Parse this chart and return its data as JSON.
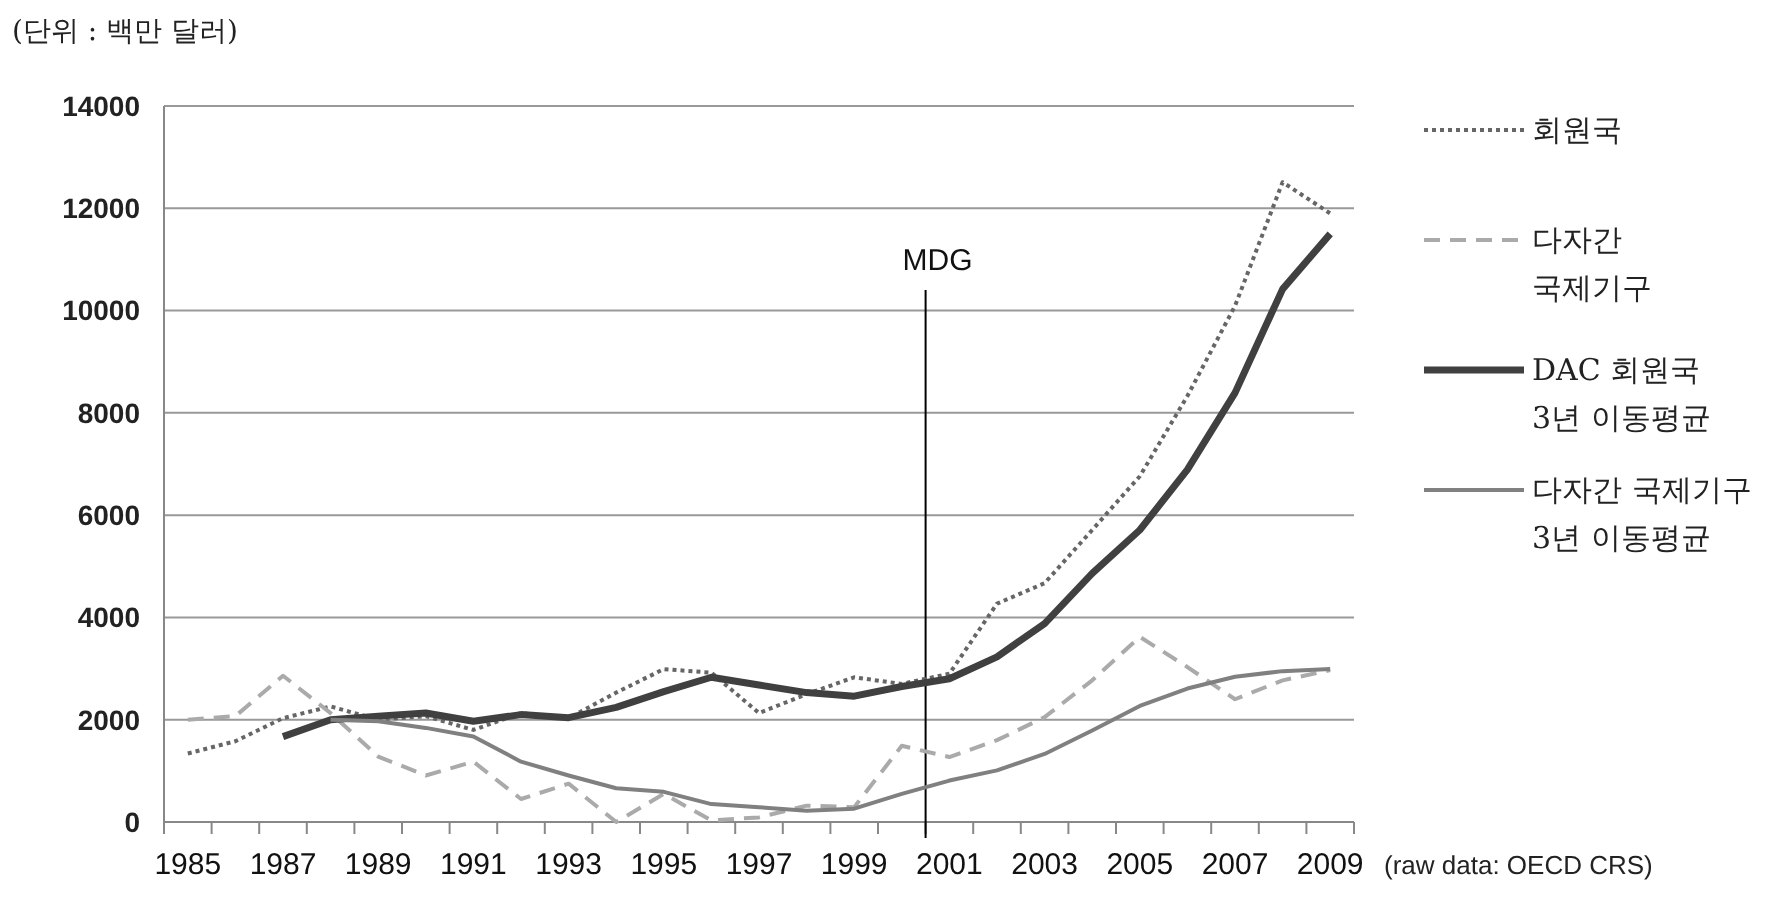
{
  "chart_data": {
    "type": "line",
    "ylabel": "(단위 : 백만 달러)",
    "annotations": [
      "(raw data: OECD CRS)"
    ],
    "categories": [
      "1985",
      null,
      "1987",
      null,
      "1989",
      null,
      "1991",
      null,
      "1993",
      null,
      "1995",
      null,
      "1997",
      null,
      "1999",
      null,
      "2001",
      null,
      "2003",
      null,
      "2005",
      null,
      "2007",
      null,
      "2009"
    ],
    "series": [
      {
        "name": "회원국",
        "color": "#666666",
        "line_style": "dotted",
        "values": [
          1340,
          1580,
          2030,
          2260,
          2000,
          2070,
          1800,
          2130,
          2030,
          2530,
          2990,
          2920,
          2130,
          2500,
          2830,
          2700,
          2900,
          4270,
          4670,
          5710,
          6760,
          8330,
          10090,
          12510,
          11900
        ]
      },
      {
        "name": "다자간\n국제기구",
        "color": "#aaaaaa",
        "line_style": "dashed",
        "values": [
          2000,
          2070,
          2860,
          2130,
          1280,
          910,
          1180,
          450,
          750,
          0,
          550,
          30,
          90,
          320,
          290,
          1490,
          1270,
          1600,
          2050,
          2770,
          3620,
          3030,
          2400,
          2770,
          2970
        ]
      },
      {
        "name": "DAC 회원국\n3년 이동평균",
        "color": "#404040",
        "line_style": "solid",
        "values": [
          null,
          null,
          1670,
          2000,
          2070,
          2130,
          1970,
          2100,
          2040,
          2240,
          2550,
          2830,
          2680,
          2530,
          2460,
          2650,
          2800,
          3230,
          3880,
          4860,
          5710,
          6890,
          8390,
          10420,
          11500
        ]
      },
      {
        "name": "다자간 국제기구\n3년 이동평균",
        "color": "#808080",
        "line_style": "solid",
        "values": [
          null,
          null,
          null,
          2000,
          1970,
          1840,
          1670,
          1180,
          910,
          660,
          590,
          350,
          290,
          220,
          260,
          550,
          810,
          1010,
          1330,
          1790,
          2270,
          2610,
          2840,
          2950,
          2990
        ]
      }
    ],
    "ylim": [
      0,
      14000
    ],
    "yticks": [
      0,
      2000,
      4000,
      6000,
      8000,
      10000,
      12000,
      14000
    ],
    "grid": "y",
    "legend": "right",
    "ref_lines": [
      {
        "axis": "x",
        "value": "2001",
        "label": "MDG",
        "color": "#000000"
      }
    ]
  }
}
